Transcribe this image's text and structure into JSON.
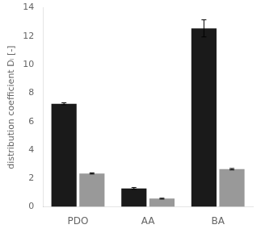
{
  "chart_data": {
    "type": "bar",
    "categories": [
      "PDO",
      "AA",
      "BA"
    ],
    "series": [
      {
        "color": "#1a1a1a",
        "values": [
          7.25,
          1.3,
          12.55
        ],
        "errors": [
          0.07,
          0.06,
          0.6
        ]
      },
      {
        "color": "#999999",
        "values": [
          2.35,
          0.58,
          2.65
        ],
        "errors": [
          0.04,
          0.03,
          0.05
        ]
      }
    ],
    "ylabel": "distribution coefficient Dᵢ [-]",
    "ylim": [
      0,
      14
    ],
    "yticks": [
      0,
      2,
      4,
      6,
      8,
      10,
      12,
      14
    ],
    "grid": false
  }
}
